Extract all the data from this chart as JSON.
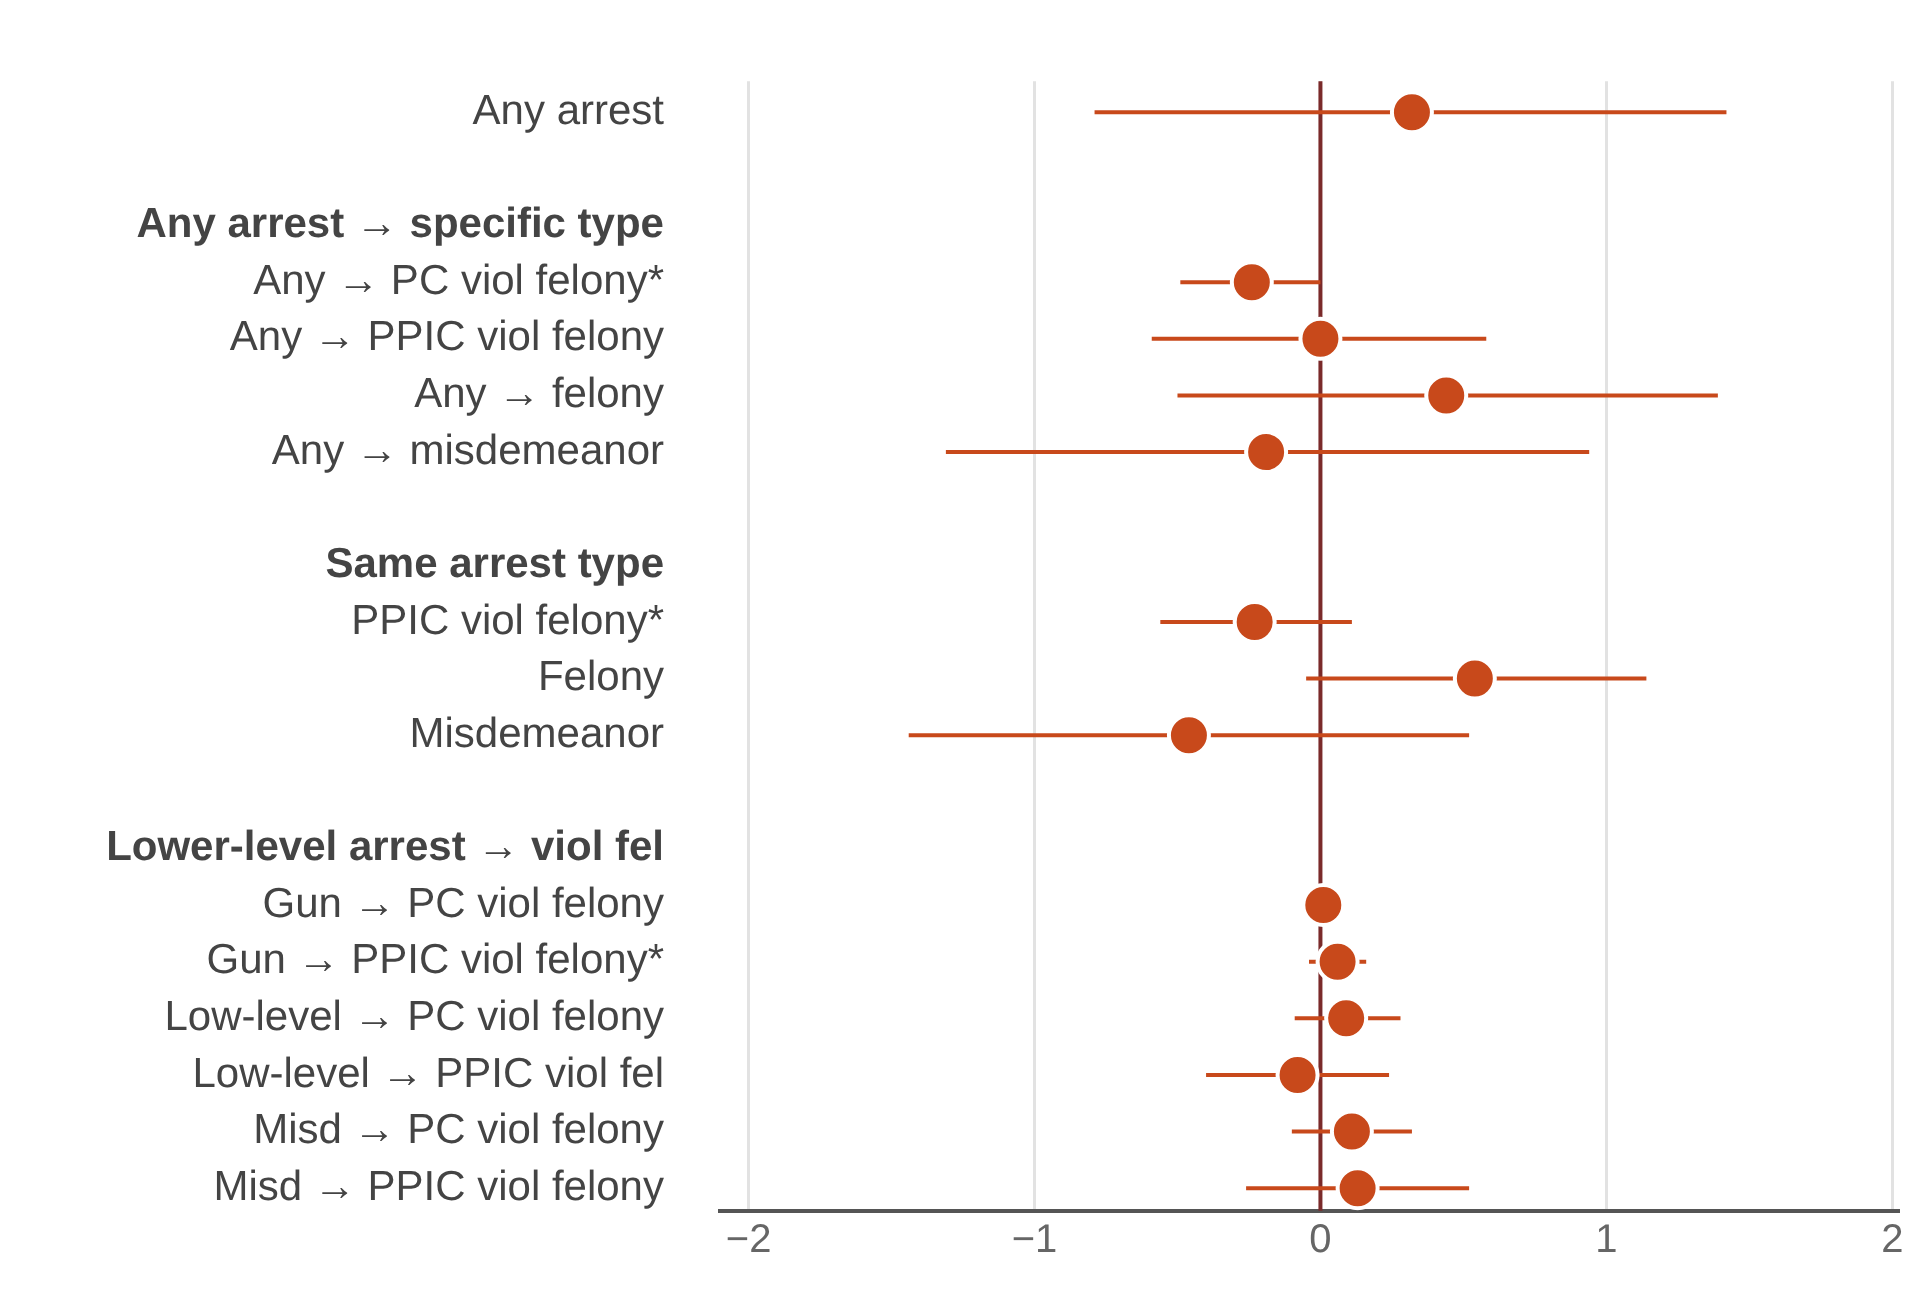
{
  "chart_data": {
    "type": "scatter",
    "orientation": "horizontal",
    "categories": [
      "Any arrest",
      null,
      "Any arrest → specific type",
      "Any → PC viol felony*",
      "Any → PPIC viol felony",
      "Any → felony",
      "Any → misdemeanor",
      null,
      "Same arrest type",
      "PPIC viol felony*",
      "Felony",
      "Misdemeanor",
      null,
      "Lower-level arrest → viol fel",
      "Gun → PC viol felony",
      "Gun → PPIC viol felony*",
      "Low-level → PC viol felony",
      "Low-level → PPIC viol fel",
      "Misd → PC viol felony",
      "Misd → PPIC viol felony"
    ],
    "series": [
      {
        "color": "#c8491b",
        "values": [
          0.32,
          null,
          null,
          -0.24,
          0,
          0.44,
          -0.19,
          null,
          null,
          -0.23,
          0.54,
          -0.46,
          null,
          null,
          0.01,
          0.06,
          0.09,
          -0.08,
          0.11,
          0.13
        ],
        "errors": [
          [
            -0.79,
            1.42
          ],
          null,
          null,
          [
            -0.49,
            0
          ],
          [
            -0.59,
            0.58
          ],
          [
            -0.5,
            1.39
          ],
          [
            -1.31,
            0.94
          ],
          null,
          null,
          [
            -0.56,
            0.11
          ],
          [
            -0.05,
            1.14
          ],
          [
            -1.44,
            0.52
          ],
          null,
          null,
          null,
          [
            -0.04,
            0.16
          ],
          [
            -0.09,
            0.28
          ],
          [
            -0.4,
            0.24
          ],
          [
            -0.1,
            0.32
          ],
          [
            -0.26,
            0.52
          ]
        ]
      }
    ],
    "xlim": [
      -2.1,
      2.02
    ],
    "xticks": [
      {
        "value": -2,
        "label": "−2"
      },
      {
        "value": -1,
        "label": "−1"
      },
      0,
      1,
      2
    ],
    "ref_lines": [
      {
        "axis": "x",
        "value": 0,
        "color": "#7a2a2a"
      }
    ],
    "grid": "x",
    "legend": false,
    "marker": "circle"
  }
}
